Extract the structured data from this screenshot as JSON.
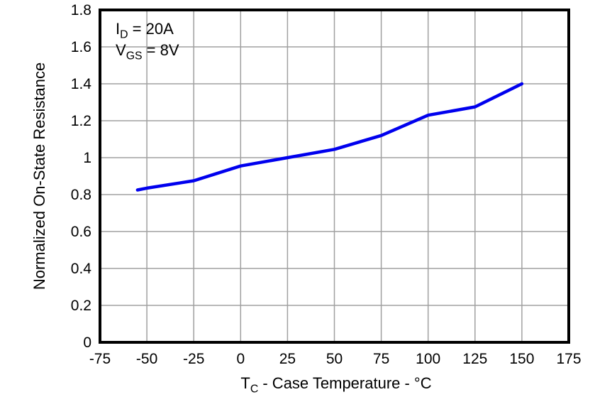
{
  "chart_data": {
    "type": "line",
    "title": "",
    "ylabel": "Normalized On-State Resistance",
    "xlabel_parts": {
      "sym": "T",
      "sub": "C",
      "rest": " - Case Temperature - °C"
    },
    "xlim": [
      -75,
      175
    ],
    "ylim": [
      0,
      1.8
    ],
    "xticks": [
      -75,
      -50,
      -25,
      0,
      25,
      50,
      75,
      100,
      125,
      150,
      175
    ],
    "xtick_labels": [
      "-75",
      "-50",
      "-25",
      "0",
      "25",
      "50",
      "75",
      "100",
      "125",
      "150",
      "175"
    ],
    "yticks": [
      0,
      0.2,
      0.4,
      0.6,
      0.8,
      1,
      1.2,
      1.4,
      1.6,
      1.8
    ],
    "ytick_labels": [
      "0",
      "0.2",
      "0.4",
      "0.6",
      "0.8",
      "1",
      "1.2",
      "1.4",
      "1.6",
      "1.8"
    ],
    "grid": true,
    "legend": "none",
    "series": [
      {
        "name": "normalized-on-state-resistance",
        "color": "#0000EE",
        "x": [
          -55,
          -50,
          -25,
          0,
          25,
          50,
          75,
          100,
          125,
          150
        ],
        "y": [
          0.825,
          0.835,
          0.875,
          0.955,
          1.0,
          1.045,
          1.12,
          1.23,
          1.275,
          1.4
        ]
      }
    ],
    "annotation": {
      "line1": {
        "sym": "I",
        "sub": "D",
        "rest": " = 20A"
      },
      "line2": {
        "sym": "V",
        "sub": "GS",
        "rest": " = 8V"
      }
    },
    "colors": {
      "curve": "#0000EE",
      "grid": "#a0a0a0",
      "frame": "#000000",
      "text": "#000000",
      "background": "#ffffff"
    }
  }
}
